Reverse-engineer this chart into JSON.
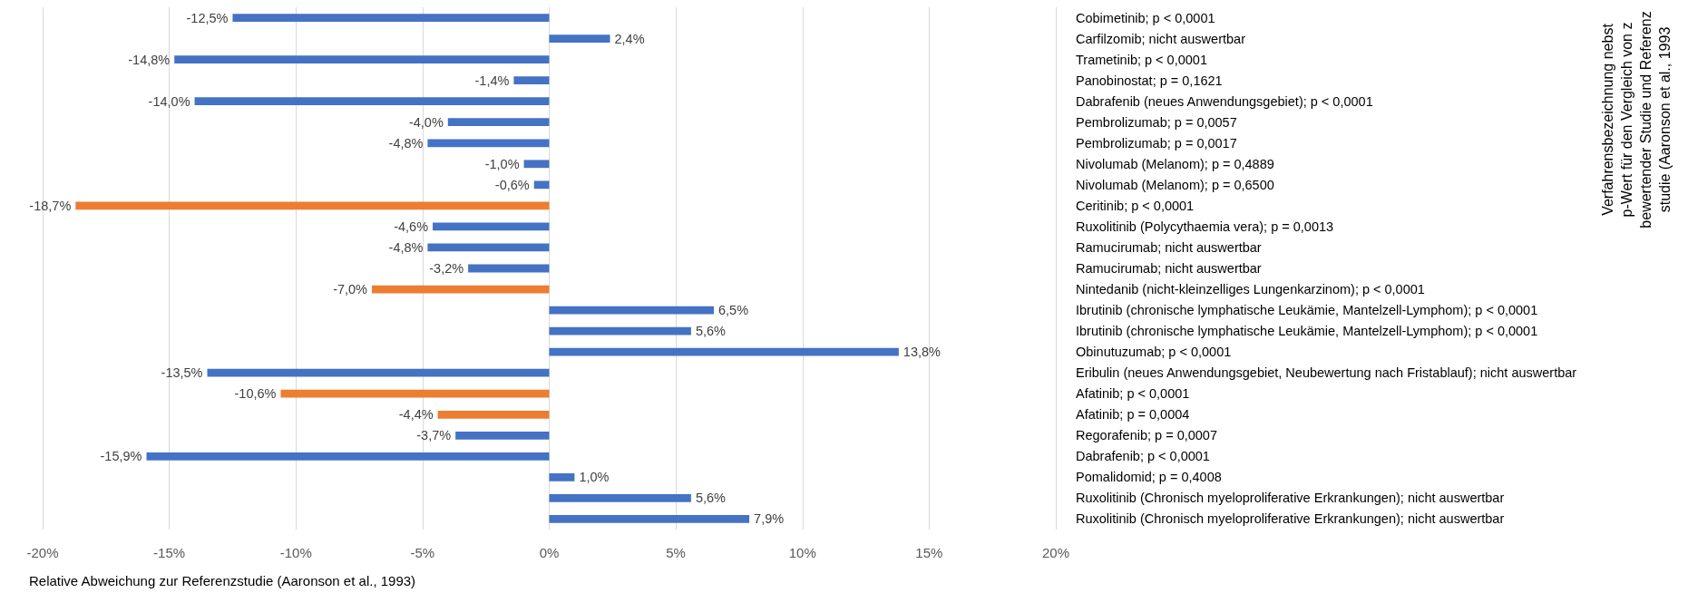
{
  "chart_data": {
    "type": "bar",
    "orientation": "horizontal",
    "xlabel": "Relative Abweichung zur Referenzstudie (Aaronson et al., 1993)",
    "ylabel": "Verfahrensbezeichnung nebst\np-Wert für den Vergleich von z\nbewertender Studie und Referenz\nstudie (Aaronson et al., 1993",
    "categories": [
      "Cobimetinib; p < 0,0001",
      "Carfilzomib; nicht auswertbar",
      "Trametinib; p < 0,0001",
      "Panobinostat; p = 0,1621",
      "Dabrafenib (neues Anwendungsgebiet); p < 0,0001",
      "Pembrolizumab; p = 0,0057",
      "Pembrolizumab; p = 0,0017",
      "Nivolumab (Melanom); p = 0,4889",
      "Nivolumab (Melanom); p = 0,6500",
      "Ceritinib; p < 0,0001",
      "Ruxolitinib (Polycythaemia vera); p = 0,0013",
      "Ramucirumab; nicht auswertbar",
      "Ramucirumab; nicht auswertbar",
      "Nintedanib (nicht-kleinzelliges Lungenkarzinom); p < 0,0001",
      "Ibrutinib (chronische lymphatische Leukämie, Mantelzell-Lymphom); p < 0,0001",
      "Ibrutinib (chronische lymphatische Leukämie, Mantelzell-Lymphom); p < 0,0001",
      "Obinutuzumab; p < 0,0001",
      "Eribulin (neues Anwendungsgebiet, Neubewertung nach Fristablauf); nicht auswertbar",
      "Afatinib; p < 0,0001",
      "Afatinib; p = 0,0004",
      "Regorafenib; p = 0,0007",
      "Dabrafenib; p < 0,0001",
      "Pomalidomid; p = 0,4008",
      "Ruxolitinib (Chronisch myeloproliferative Erkrankungen); nicht auswertbar",
      "Ruxolitinib (Chronisch myeloproliferative Erkrankungen); nicht auswertbar"
    ],
    "values": [
      -12.5,
      2.4,
      -14.8,
      -1.4,
      -14.0,
      -4.0,
      -4.8,
      -1.0,
      -0.6,
      -18.7,
      -4.6,
      -4.8,
      -3.2,
      -7.0,
      6.5,
      5.6,
      13.8,
      -13.5,
      -10.6,
      -4.4,
      -3.7,
      -15.9,
      1.0,
      5.6,
      7.9
    ],
    "value_labels": [
      "-12,5%",
      "2,4%",
      "-14,8%",
      "-1,4%",
      "-14,0%",
      "-4,0%",
      "-4,8%",
      "-1,0%",
      "-0,6%",
      "-18,7%",
      "-4,6%",
      "-4,8%",
      "-3,2%",
      "-7,0%",
      "6,5%",
      "5,6%",
      "13,8%",
      "-13,5%",
      "-10,6%",
      "-4,4%",
      "-3,7%",
      "-15,9%",
      "1,0%",
      "5,6%",
      "7,9%"
    ],
    "colors": [
      "#4472c4",
      "#4472c4",
      "#4472c4",
      "#4472c4",
      "#4472c4",
      "#4472c4",
      "#4472c4",
      "#4472c4",
      "#4472c4",
      "#ed7d31",
      "#4472c4",
      "#4472c4",
      "#4472c4",
      "#ed7d31",
      "#4472c4",
      "#4472c4",
      "#4472c4",
      "#4472c4",
      "#ed7d31",
      "#ed7d31",
      "#4472c4",
      "#4472c4",
      "#4472c4",
      "#4472c4",
      "#4472c4"
    ],
    "xlim": [
      -20,
      20
    ],
    "xticks": [
      {
        "value": -20,
        "label": "-20%"
      },
      {
        "value": -15,
        "label": "-15%"
      },
      {
        "value": -10,
        "label": "-10%"
      },
      {
        "value": -5,
        "label": "-5%"
      },
      {
        "value": 0,
        "label": "0%"
      },
      {
        "value": 5,
        "label": "5%"
      },
      {
        "value": 10,
        "label": "10%"
      },
      {
        "value": 15,
        "label": "15%"
      },
      {
        "value": 20,
        "label": "20%"
      }
    ],
    "grid": "x"
  }
}
